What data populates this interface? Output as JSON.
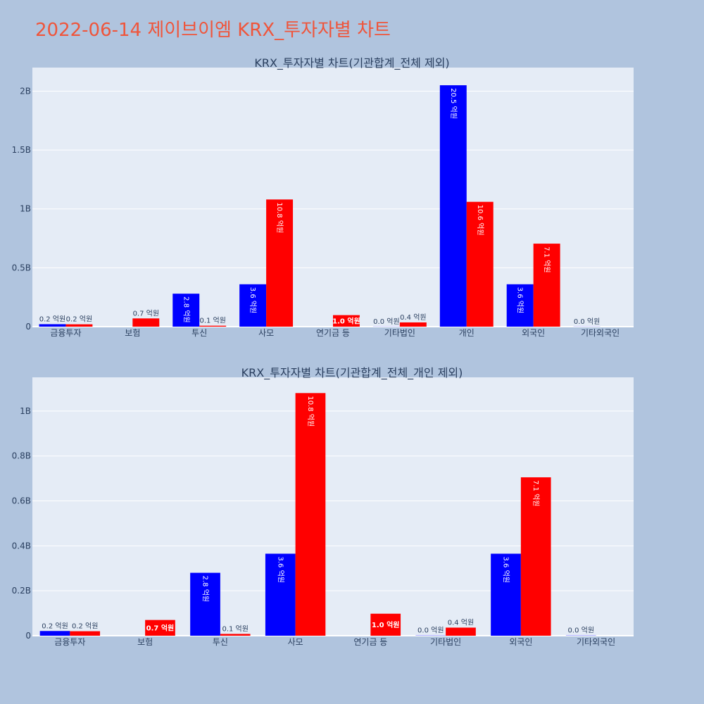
{
  "main_title": "2022-06-14 제이브이엠 KRX_투자자별 차트",
  "chart_data": [
    {
      "type": "bar",
      "title": "KRX_투자자별 차트(기관합계_전체 제외)",
      "categories": [
        "금융투자",
        "보험",
        "투신",
        "사모",
        "연기금 등",
        "기타법인",
        "개인",
        "외국인",
        "기타외국인"
      ],
      "series": [
        {
          "color": "#0000ff",
          "values": [
            21000000,
            0,
            280000000,
            360000000,
            0,
            1000000,
            2050000000,
            360000000,
            1000000
          ],
          "labels": [
            "0.2 억원",
            "",
            "2.8 억원",
            "3.6 억원",
            "",
            "0.0 억원",
            "20.5 억원",
            "3.6 억원",
            "0.0 억원"
          ]
        },
        {
          "color": "#ff0000",
          "values": [
            20000000,
            70000000,
            8000000,
            1080000000,
            98000000,
            36000000,
            1060000000,
            705000000,
            0
          ],
          "labels": [
            "0.2 억원",
            "0.7 억원",
            "0.1 억원",
            "10.8 억원",
            "1.0 억원",
            "0.4 억원",
            "10.6 억원",
            "7.1 억원",
            ""
          ]
        }
      ],
      "ylim": [
        0,
        2200000000
      ],
      "yticks": [
        0,
        500000000,
        1000000000,
        1500000000,
        2000000000
      ],
      "ytick_labels": [
        "0",
        "0.5B",
        "1B",
        "1.5B",
        "2B"
      ]
    },
    {
      "type": "bar",
      "title": "KRX_투자자별 차트(기관합계_전체_개인 제외)",
      "categories": [
        "금융투자",
        "보험",
        "투신",
        "사모",
        "연기금 등",
        "기타법인",
        "외국인",
        "기타외국인"
      ],
      "series": [
        {
          "color": "#0000ff",
          "values": [
            21000000,
            0,
            280000000,
            365000000,
            0,
            1000000,
            365000000,
            1000000
          ],
          "labels": [
            "0.2 억원",
            "",
            "2.8 억원",
            "3.6 억원",
            "",
            "0.0 억원",
            "3.6 억원",
            "0.0 억원"
          ]
        },
        {
          "color": "#ff0000",
          "values": [
            20000000,
            70000000,
            8000000,
            1080000000,
            98000000,
            36000000,
            705000000,
            0
          ],
          "labels": [
            "0.2 억원",
            "0.7 억원",
            "0.1 억원",
            "10.8 억원",
            "1.0 억원",
            "0.4 억원",
            "7.1 억원",
            ""
          ]
        }
      ],
      "ylim": [
        0,
        1150000000
      ],
      "yticks": [
        0,
        200000000,
        400000000,
        600000000,
        800000000,
        1000000000
      ],
      "ytick_labels": [
        "0",
        "0.2B",
        "0.4B",
        "0.6B",
        "0.8B",
        "1B"
      ]
    }
  ]
}
